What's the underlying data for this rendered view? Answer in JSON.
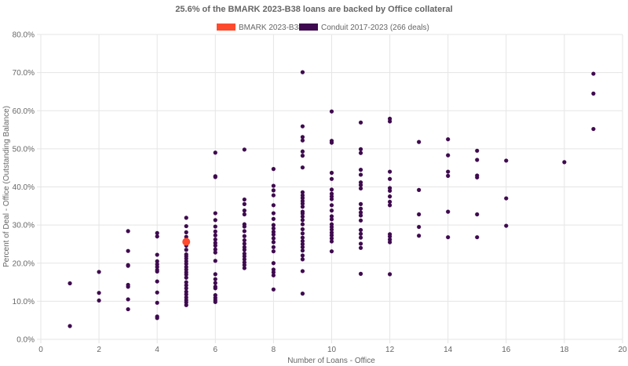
{
  "chart_data": {
    "type": "scatter",
    "title": "25.6% of the BMARK 2023-B38 loans are backed by Office collateral",
    "xlabel": "Number of Loans - Office",
    "ylabel": "Percent of Deal - Office (Outstanding Balance)",
    "xlim": [
      0,
      20
    ],
    "ylim": [
      0,
      80
    ],
    "xticks": [
      "0",
      "2",
      "4",
      "6",
      "8",
      "10",
      "12",
      "14",
      "16",
      "18",
      "20"
    ],
    "yticks": [
      "0.0%",
      "10.0%",
      "20.0%",
      "30.0%",
      "40.0%",
      "50.0%",
      "60.0%",
      "70.0%",
      "80.0%"
    ],
    "grid": true,
    "legend_position": "top",
    "series": [
      {
        "name": "BMARK 2023-B38",
        "color": "#ff4a2e",
        "points": [
          [
            5,
            25.6
          ]
        ]
      },
      {
        "name": "Conduit 2017-2023 (266 deals)",
        "color": "#3f0a4f",
        "points": [
          [
            1,
            14.7
          ],
          [
            1,
            3.5
          ],
          [
            2,
            17.7
          ],
          [
            2,
            12.2
          ],
          [
            2,
            10.2
          ],
          [
            3,
            28.4
          ],
          [
            3,
            23.2
          ],
          [
            3,
            19.5
          ],
          [
            3,
            19.3
          ],
          [
            3,
            14.3
          ],
          [
            3,
            13.8
          ],
          [
            3,
            10.5
          ],
          [
            3,
            7.9
          ],
          [
            4,
            27.9
          ],
          [
            4,
            27.0
          ],
          [
            4,
            22.2
          ],
          [
            4,
            20.5
          ],
          [
            4,
            19.7
          ],
          [
            4,
            19.0
          ],
          [
            4,
            18.2
          ],
          [
            4,
            17.8
          ],
          [
            4,
            15.2
          ],
          [
            4,
            12.3
          ],
          [
            4,
            9.6
          ],
          [
            4,
            6.0
          ],
          [
            4,
            5.6
          ],
          [
            5,
            31.9
          ],
          [
            5,
            29.7
          ],
          [
            5,
            28.1
          ],
          [
            5,
            26.9
          ],
          [
            5,
            24.6
          ],
          [
            5,
            23.5
          ],
          [
            5,
            22.3
          ],
          [
            5,
            21.8
          ],
          [
            5,
            21.2
          ],
          [
            5,
            20.5
          ],
          [
            5,
            19.8
          ],
          [
            5,
            19.0
          ],
          [
            5,
            18.3
          ],
          [
            5,
            17.6
          ],
          [
            5,
            17.0
          ],
          [
            5,
            16.2
          ],
          [
            5,
            15.0
          ],
          [
            5,
            14.2
          ],
          [
            5,
            13.4
          ],
          [
            5,
            12.5
          ],
          [
            5,
            11.8
          ],
          [
            5,
            11.0
          ],
          [
            5,
            10.3
          ],
          [
            5,
            9.7
          ],
          [
            5,
            9.0
          ],
          [
            6,
            49.0
          ],
          [
            6,
            42.8
          ],
          [
            6,
            42.6
          ],
          [
            6,
            33.1
          ],
          [
            6,
            31.3
          ],
          [
            6,
            29.6
          ],
          [
            6,
            28.3
          ],
          [
            6,
            27.3
          ],
          [
            6,
            26.2
          ],
          [
            6,
            25.3
          ],
          [
            6,
            24.6
          ],
          [
            6,
            23.6
          ],
          [
            6,
            22.8
          ],
          [
            6,
            20.6
          ],
          [
            6,
            17.1
          ],
          [
            6,
            15.8
          ],
          [
            6,
            14.8
          ],
          [
            6,
            13.8
          ],
          [
            6,
            13.4
          ],
          [
            6,
            11.6
          ],
          [
            6,
            10.9
          ],
          [
            6,
            10.3
          ],
          [
            6,
            9.8
          ],
          [
            7,
            49.8
          ],
          [
            7,
            36.7
          ],
          [
            7,
            35.5
          ],
          [
            7,
            33.8
          ],
          [
            7,
            32.8
          ],
          [
            7,
            30.2
          ],
          [
            7,
            29.6
          ],
          [
            7,
            28.4
          ],
          [
            7,
            27.1
          ],
          [
            7,
            26.0
          ],
          [
            7,
            25.1
          ],
          [
            7,
            24.2
          ],
          [
            7,
            23.5
          ],
          [
            7,
            22.5
          ],
          [
            7,
            21.8
          ],
          [
            7,
            21.0
          ],
          [
            7,
            20.2
          ],
          [
            7,
            19.5
          ],
          [
            7,
            18.7
          ],
          [
            8,
            44.7
          ],
          [
            8,
            40.3
          ],
          [
            8,
            39.1
          ],
          [
            8,
            37.8
          ],
          [
            8,
            35.2
          ],
          [
            8,
            33.1
          ],
          [
            8,
            31.6
          ],
          [
            8,
            30.0
          ],
          [
            8,
            29.1
          ],
          [
            8,
            28.2
          ],
          [
            8,
            27.5
          ],
          [
            8,
            26.5
          ],
          [
            8,
            25.5
          ],
          [
            8,
            24.2
          ],
          [
            8,
            23.1
          ],
          [
            8,
            20.0
          ],
          [
            8,
            18.3
          ],
          [
            8,
            17.6
          ],
          [
            8,
            16.8
          ],
          [
            8,
            13.1
          ],
          [
            9,
            70.1
          ],
          [
            9,
            55.9
          ],
          [
            9,
            53.1
          ],
          [
            9,
            52.2
          ],
          [
            9,
            49.3
          ],
          [
            9,
            48.2
          ],
          [
            9,
            45.1
          ],
          [
            9,
            38.6
          ],
          [
            9,
            37.8
          ],
          [
            9,
            37.1
          ],
          [
            9,
            36.3
          ],
          [
            9,
            35.6
          ],
          [
            9,
            34.8
          ],
          [
            9,
            33.5
          ],
          [
            9,
            33.0
          ],
          [
            9,
            32.2
          ],
          [
            9,
            31.3
          ],
          [
            9,
            30.2
          ],
          [
            9,
            28.9
          ],
          [
            9,
            27.8
          ],
          [
            9,
            26.7
          ],
          [
            9,
            25.8
          ],
          [
            9,
            25.0
          ],
          [
            9,
            24.2
          ],
          [
            9,
            23.3
          ],
          [
            9,
            22.0
          ],
          [
            9,
            21.0
          ],
          [
            9,
            17.9
          ],
          [
            9,
            12.0
          ],
          [
            10,
            59.8
          ],
          [
            10,
            52.1
          ],
          [
            10,
            51.6
          ],
          [
            10,
            43.7
          ],
          [
            10,
            42.1
          ],
          [
            10,
            39.3
          ],
          [
            10,
            38.2
          ],
          [
            10,
            37.5
          ],
          [
            10,
            36.8
          ],
          [
            10,
            35.2
          ],
          [
            10,
            33.8
          ],
          [
            10,
            32.3
          ],
          [
            10,
            31.5
          ],
          [
            10,
            30.2
          ],
          [
            10,
            29.5
          ],
          [
            10,
            28.8
          ],
          [
            10,
            28.0
          ],
          [
            10,
            27.3
          ],
          [
            10,
            26.5
          ],
          [
            10,
            25.7
          ],
          [
            10,
            23.1
          ],
          [
            11,
            56.9
          ],
          [
            11,
            49.9
          ],
          [
            11,
            48.9
          ],
          [
            11,
            44.5
          ],
          [
            11,
            43.2
          ],
          [
            11,
            41.2
          ],
          [
            11,
            40.5
          ],
          [
            11,
            39.6
          ],
          [
            11,
            35.5
          ],
          [
            11,
            34.3
          ],
          [
            11,
            33.3
          ],
          [
            11,
            32.5
          ],
          [
            11,
            31.2
          ],
          [
            11,
            28.7
          ],
          [
            11,
            27.7
          ],
          [
            11,
            26.7
          ],
          [
            11,
            25.1
          ],
          [
            11,
            24.0
          ],
          [
            11,
            17.2
          ],
          [
            12,
            57.9
          ],
          [
            12,
            57.2
          ],
          [
            12,
            44.0
          ],
          [
            12,
            42.1
          ],
          [
            12,
            39.7
          ],
          [
            12,
            39.0
          ],
          [
            12,
            37.5
          ],
          [
            12,
            36.1
          ],
          [
            12,
            35.2
          ],
          [
            12,
            27.6
          ],
          [
            12,
            27.0
          ],
          [
            12,
            26.2
          ],
          [
            12,
            25.5
          ],
          [
            12,
            17.1
          ],
          [
            13,
            51.8
          ],
          [
            13,
            39.2
          ],
          [
            13,
            32.8
          ],
          [
            13,
            29.5
          ],
          [
            13,
            27.2
          ],
          [
            14,
            52.5
          ],
          [
            14,
            48.3
          ],
          [
            14,
            44.0
          ],
          [
            14,
            42.9
          ],
          [
            14,
            33.5
          ],
          [
            14,
            26.8
          ],
          [
            15,
            49.5
          ],
          [
            15,
            47.1
          ],
          [
            15,
            43.0
          ],
          [
            15,
            42.5
          ],
          [
            15,
            32.8
          ],
          [
            15,
            26.8
          ],
          [
            16,
            46.9
          ],
          [
            16,
            37.0
          ],
          [
            16,
            29.8
          ],
          [
            18,
            46.5
          ],
          [
            19,
            69.7
          ],
          [
            19,
            64.5
          ],
          [
            19,
            55.2
          ]
        ]
      }
    ]
  }
}
